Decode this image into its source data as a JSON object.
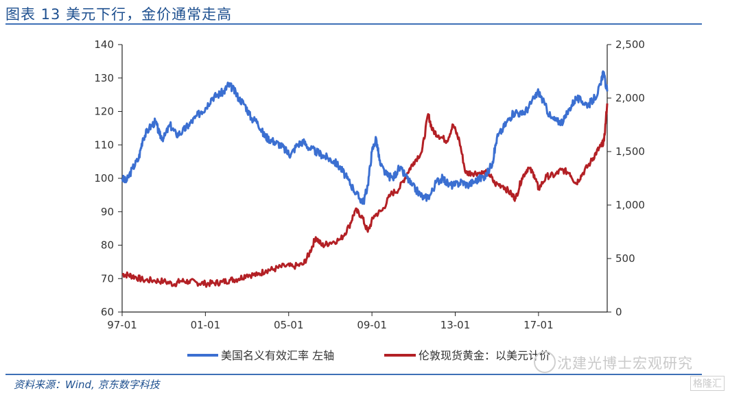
{
  "header": {
    "title": "图表 13 美元下行，金价通常走高"
  },
  "footer": {
    "source": "资料来源：Wind, 京东数字科技"
  },
  "watermark": {
    "text": "沈建光博士宏观研究",
    "logo": "格隆汇"
  },
  "chart_data": {
    "type": "line",
    "x_ticks": [
      "97-01",
      "01-01",
      "05-01",
      "09-01",
      "13-01",
      "17-01"
    ],
    "x_range": [
      1997.0,
      2020.3
    ],
    "left_axis": {
      "ylim": [
        60,
        140
      ],
      "ticks": [
        "60",
        "70",
        "80",
        "90",
        "100",
        "110",
        "120",
        "130",
        "140"
      ]
    },
    "right_axis": {
      "ylim": [
        0,
        2500
      ],
      "ticks": [
        "0",
        "500",
        "1,000",
        "1,500",
        "2,000",
        "2,500"
      ]
    },
    "series": [
      {
        "name": "美国名义有效汇率 左轴",
        "axis": "left",
        "color": "#3b6fd1",
        "points": [
          [
            1997.0,
            100
          ],
          [
            1997.2,
            99
          ],
          [
            1997.5,
            103
          ],
          [
            1997.8,
            106
          ],
          [
            1998.0,
            112
          ],
          [
            1998.3,
            115
          ],
          [
            1998.6,
            117
          ],
          [
            1998.8,
            113
          ],
          [
            1999.0,
            112
          ],
          [
            1999.3,
            116
          ],
          [
            1999.6,
            113
          ],
          [
            1999.9,
            114
          ],
          [
            2000.2,
            116
          ],
          [
            2000.5,
            118
          ],
          [
            2000.8,
            120
          ],
          [
            2001.0,
            121
          ],
          [
            2001.3,
            124
          ],
          [
            2001.6,
            125
          ],
          [
            2001.9,
            126
          ],
          [
            2002.1,
            128
          ],
          [
            2002.3,
            127
          ],
          [
            2002.6,
            124
          ],
          [
            2002.9,
            122
          ],
          [
            2003.2,
            118
          ],
          [
            2003.5,
            117
          ],
          [
            2003.8,
            113
          ],
          [
            2004.0,
            112
          ],
          [
            2004.3,
            111
          ],
          [
            2004.6,
            110
          ],
          [
            2004.9,
            108
          ],
          [
            2005.1,
            107
          ],
          [
            2005.4,
            110
          ],
          [
            2005.7,
            111
          ],
          [
            2006.0,
            109
          ],
          [
            2006.3,
            108
          ],
          [
            2006.6,
            107
          ],
          [
            2006.9,
            106
          ],
          [
            2007.2,
            105
          ],
          [
            2007.5,
            103
          ],
          [
            2007.8,
            100
          ],
          [
            2008.1,
            97
          ],
          [
            2008.4,
            94
          ],
          [
            2008.6,
            93
          ],
          [
            2008.8,
            98
          ],
          [
            2009.0,
            108
          ],
          [
            2009.2,
            112
          ],
          [
            2009.4,
            104
          ],
          [
            2009.7,
            101
          ],
          [
            2010.0,
            100
          ],
          [
            2010.3,
            103
          ],
          [
            2010.6,
            101
          ],
          [
            2010.9,
            98
          ],
          [
            2011.2,
            96
          ],
          [
            2011.5,
            94
          ],
          [
            2011.8,
            95
          ],
          [
            2012.1,
            99
          ],
          [
            2012.4,
            100
          ],
          [
            2012.7,
            98
          ],
          [
            2013.0,
            98
          ],
          [
            2013.3,
            99
          ],
          [
            2013.6,
            98
          ],
          [
            2013.9,
            99
          ],
          [
            2014.2,
            100
          ],
          [
            2014.5,
            101
          ],
          [
            2014.8,
            105
          ],
          [
            2015.0,
            112
          ],
          [
            2015.3,
            115
          ],
          [
            2015.6,
            118
          ],
          [
            2015.9,
            120
          ],
          [
            2016.2,
            119
          ],
          [
            2016.5,
            121
          ],
          [
            2016.8,
            124
          ],
          [
            2017.0,
            126
          ],
          [
            2017.3,
            122
          ],
          [
            2017.6,
            118
          ],
          [
            2017.9,
            117
          ],
          [
            2018.2,
            117
          ],
          [
            2018.5,
            121
          ],
          [
            2018.8,
            124
          ],
          [
            2019.1,
            123
          ],
          [
            2019.4,
            122
          ],
          [
            2019.7,
            124
          ],
          [
            2020.0,
            128
          ],
          [
            2020.1,
            132
          ],
          [
            2020.3,
            126
          ]
        ]
      },
      {
        "name": "伦敦现货黄金：以美元计价",
        "axis": "right",
        "color": "#b32025",
        "points": [
          [
            1997.0,
            355
          ],
          [
            1997.3,
            345
          ],
          [
            1997.6,
            330
          ],
          [
            1998.0,
            300
          ],
          [
            1998.5,
            295
          ],
          [
            1999.0,
            287
          ],
          [
            1999.5,
            260
          ],
          [
            1999.8,
            290
          ],
          [
            2000.2,
            285
          ],
          [
            2000.6,
            275
          ],
          [
            2001.0,
            265
          ],
          [
            2001.4,
            270
          ],
          [
            2001.8,
            280
          ],
          [
            2002.2,
            300
          ],
          [
            2002.6,
            310
          ],
          [
            2003.0,
            350
          ],
          [
            2003.5,
            345
          ],
          [
            2003.9,
            390
          ],
          [
            2004.3,
            400
          ],
          [
            2004.8,
            430
          ],
          [
            2005.2,
            425
          ],
          [
            2005.7,
            445
          ],
          [
            2006.0,
            550
          ],
          [
            2006.3,
            700
          ],
          [
            2006.6,
            620
          ],
          [
            2007.0,
            650
          ],
          [
            2007.5,
            680
          ],
          [
            2007.9,
            800
          ],
          [
            2008.2,
            950
          ],
          [
            2008.5,
            900
          ],
          [
            2008.8,
            750
          ],
          [
            2009.1,
            900
          ],
          [
            2009.5,
            950
          ],
          [
            2009.9,
            1100
          ],
          [
            2010.3,
            1150
          ],
          [
            2010.7,
            1300
          ],
          [
            2011.0,
            1400
          ],
          [
            2011.4,
            1500
          ],
          [
            2011.7,
            1850
          ],
          [
            2011.9,
            1700
          ],
          [
            2012.2,
            1650
          ],
          [
            2012.6,
            1600
          ],
          [
            2012.9,
            1750
          ],
          [
            2013.2,
            1600
          ],
          [
            2013.5,
            1300
          ],
          [
            2013.8,
            1300
          ],
          [
            2014.2,
            1300
          ],
          [
            2014.6,
            1300
          ],
          [
            2014.9,
            1200
          ],
          [
            2015.3,
            1180
          ],
          [
            2015.7,
            1100
          ],
          [
            2015.9,
            1060
          ],
          [
            2016.2,
            1250
          ],
          [
            2016.5,
            1350
          ],
          [
            2016.8,
            1280
          ],
          [
            2017.0,
            1150
          ],
          [
            2017.4,
            1270
          ],
          [
            2017.8,
            1280
          ],
          [
            2018.1,
            1330
          ],
          [
            2018.5,
            1300
          ],
          [
            2018.8,
            1200
          ],
          [
            2019.1,
            1290
          ],
          [
            2019.5,
            1400
          ],
          [
            2019.8,
            1500
          ],
          [
            2020.0,
            1550
          ],
          [
            2020.15,
            1600
          ],
          [
            2020.3,
            1950
          ]
        ]
      }
    ],
    "legend_placement": "bottom"
  }
}
